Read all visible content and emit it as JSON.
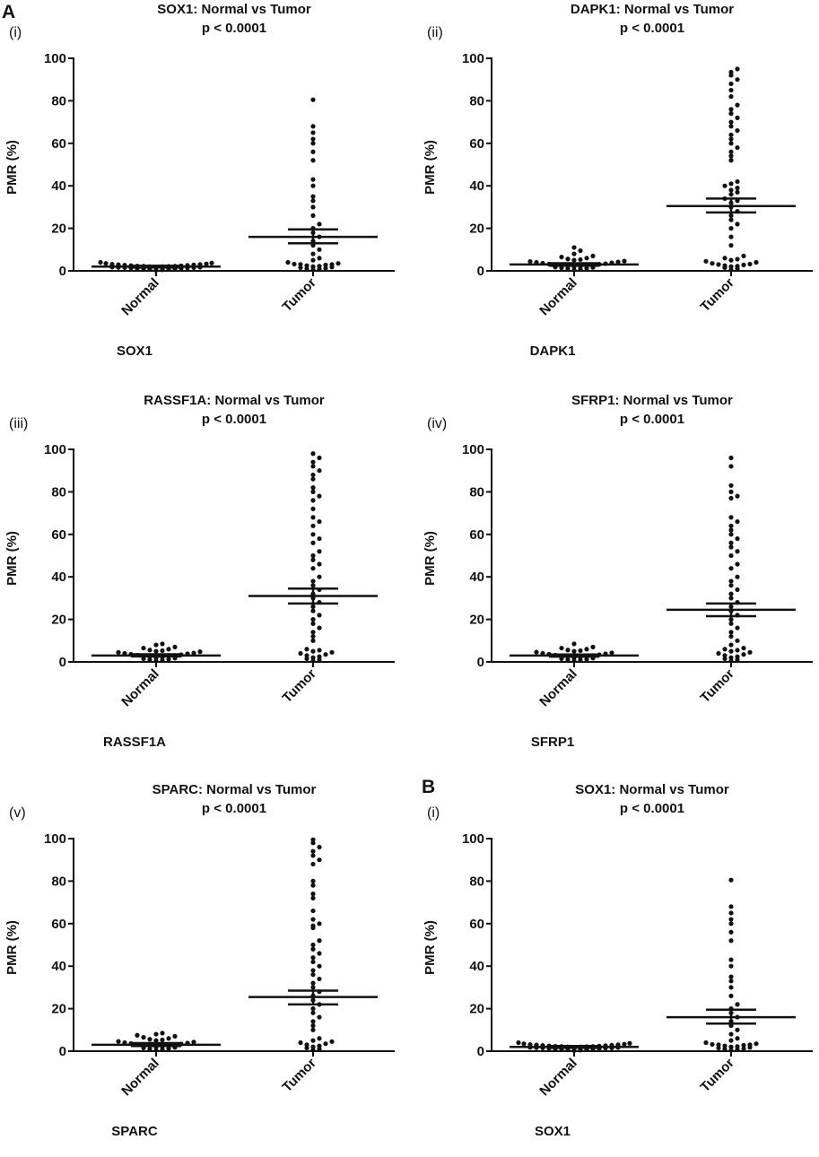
{
  "figure": {
    "section_a": "A",
    "section_b": "B"
  },
  "style": {
    "dot_color": "#111111",
    "axis_color": "#111111"
  },
  "chart_data": [
    {
      "type": "scatter",
      "panel_label": "(i)",
      "title": "SOX1: Normal vs Tumor",
      "subtitle": "p < 0.0001",
      "ylabel": "PMR (%)",
      "xlabel": "SOX1",
      "categories": [
        "Normal",
        "Tumor"
      ],
      "ylim": [
        0,
        100
      ],
      "yticks": [
        0,
        20,
        40,
        60,
        80,
        100
      ],
      "series": [
        {
          "name": "Normal",
          "mean": 2,
          "sem_low": 1.6,
          "sem_high": 2.4,
          "values": [
            0.3,
            0.5,
            0.6,
            0.8,
            1,
            1,
            1.1,
            1.2,
            1.3,
            1.4,
            1.5,
            1.5,
            1.6,
            1.7,
            1.8,
            1.9,
            2,
            2,
            2.1,
            2.2,
            2.2,
            2.3,
            2.4,
            2.5,
            2.6,
            2.7,
            2.8,
            2.9,
            3,
            3.1,
            3.3,
            3.5,
            3.7,
            4
          ]
        },
        {
          "name": "Tumor",
          "mean": 16,
          "sem_low": 13,
          "sem_high": 19.5,
          "values": [
            0.5,
            0.8,
            1,
            1.2,
            1.5,
            1.8,
            2,
            2.2,
            2.5,
            2.8,
            3,
            3,
            3.2,
            3.5,
            4,
            5,
            6,
            8,
            10,
            12,
            14,
            16,
            18,
            20,
            22,
            26,
            30,
            33,
            35,
            40,
            43,
            52,
            56,
            60,
            62,
            65,
            68,
            80.5
          ]
        }
      ]
    },
    {
      "type": "scatter",
      "panel_label": "(ii)",
      "title": "DAPK1: Normal vs Tumor",
      "subtitle": "p < 0.0001",
      "ylabel": "PMR (%)",
      "xlabel": "DAPK1",
      "categories": [
        "Normal",
        "Tumor"
      ],
      "ylim": [
        0,
        100
      ],
      "yticks": [
        0,
        20,
        40,
        60,
        80,
        100
      ],
      "series": [
        {
          "name": "Normal",
          "mean": 3,
          "sem_low": 2.4,
          "sem_high": 3.6,
          "values": [
            0.5,
            0.8,
            1,
            1.2,
            1.4,
            1.6,
            1.8,
            2,
            2.1,
            2.2,
            2.4,
            2.6,
            2.8,
            3,
            3.1,
            3.2,
            3.4,
            3.6,
            3.8,
            4,
            4.2,
            4.4,
            4.6,
            5,
            5.3,
            5.6,
            6,
            6.5,
            7,
            8,
            9.5,
            11
          ]
        },
        {
          "name": "Tumor",
          "mean": 30.5,
          "sem_low": 27.5,
          "sem_high": 34,
          "values": [
            0.5,
            1,
            1.5,
            2,
            2.2,
            2.5,
            2.8,
            3,
            3.2,
            3.5,
            4,
            4.5,
            5,
            5.5,
            6,
            7,
            12,
            16,
            20,
            22,
            24,
            26,
            28,
            30,
            32,
            33,
            34,
            36,
            37,
            38,
            39,
            40,
            41,
            42,
            52,
            54,
            56,
            58,
            60,
            62,
            64,
            66,
            68,
            70,
            72,
            74,
            76,
            78,
            82,
            85,
            88,
            90,
            92,
            93.5,
            95
          ]
        }
      ]
    },
    {
      "type": "scatter",
      "panel_label": "(iii)",
      "title": "RASSF1A: Normal vs Tumor",
      "subtitle": "p < 0.0001",
      "ylabel": "PMR (%)",
      "xlabel": "RASSF1A",
      "categories": [
        "Normal",
        "Tumor"
      ],
      "ylim": [
        0,
        100
      ],
      "yticks": [
        0,
        20,
        40,
        60,
        80,
        100
      ],
      "series": [
        {
          "name": "Normal",
          "mean": 3,
          "sem_low": 2.6,
          "sem_high": 3.6,
          "values": [
            0.5,
            0.8,
            1,
            1.2,
            1.5,
            1.8,
            2,
            2.2,
            2.4,
            2.6,
            2.8,
            3,
            3.2,
            3.4,
            3.6,
            3.8,
            4,
            4.2,
            4.5,
            4.8,
            5,
            5.3,
            5.6,
            6,
            6.5,
            7,
            8,
            8.5
          ]
        },
        {
          "name": "Tumor",
          "mean": 31,
          "sem_low": 27.5,
          "sem_high": 34.5,
          "values": [
            0.5,
            1,
            1.5,
            2,
            2.5,
            3,
            3.5,
            4,
            4.5,
            5,
            5.5,
            6,
            10,
            12,
            14,
            16,
            18,
            20,
            22,
            24,
            26,
            28,
            30,
            32,
            34,
            36,
            38,
            40,
            44,
            46,
            48,
            50,
            52,
            56,
            58,
            60,
            64,
            66,
            68,
            72,
            76,
            78,
            80,
            82,
            86,
            88,
            90,
            92,
            94,
            96,
            98
          ]
        }
      ]
    },
    {
      "type": "scatter",
      "panel_label": "(iv)",
      "title": "SFRP1: Normal vs Tumor",
      "subtitle": "p < 0.0001",
      "ylabel": "PMR (%)",
      "xlabel": "SFRP1",
      "categories": [
        "Normal",
        "Tumor"
      ],
      "ylim": [
        0,
        100
      ],
      "yticks": [
        0,
        20,
        40,
        60,
        80,
        100
      ],
      "series": [
        {
          "name": "Normal",
          "mean": 3,
          "sem_low": 2.5,
          "sem_high": 3.5,
          "values": [
            0.5,
            0.8,
            1,
            1.2,
            1.5,
            1.8,
            2,
            2.2,
            2.4,
            2.6,
            2.8,
            3,
            3.2,
            3.4,
            3.6,
            3.8,
            4,
            4.3,
            4.6,
            5,
            5.3,
            5.6,
            6,
            6.5,
            7,
            8.5
          ]
        },
        {
          "name": "Tumor",
          "mean": 24.5,
          "sem_low": 21.5,
          "sem_high": 27.5,
          "values": [
            0.5,
            1,
            1.5,
            2,
            2.5,
            3,
            3.5,
            4,
            4.5,
            5,
            5.5,
            6,
            6.5,
            8,
            10,
            12,
            14,
            16,
            18,
            20,
            22,
            24,
            26,
            28,
            30,
            32,
            34,
            36,
            38,
            40,
            44,
            46,
            50,
            52,
            54,
            56,
            58,
            60,
            62,
            64,
            66,
            68,
            77,
            78,
            80,
            83,
            92,
            96
          ]
        }
      ]
    },
    {
      "type": "scatter",
      "panel_label": "(v)",
      "title": "SPARC: Normal vs Tumor",
      "subtitle": "p < 0.0001",
      "ylabel": "PMR (%)",
      "xlabel": "SPARC",
      "categories": [
        "Normal",
        "Tumor"
      ],
      "ylim": [
        0,
        100
      ],
      "yticks": [
        0,
        20,
        40,
        60,
        80,
        100
      ],
      "series": [
        {
          "name": "Normal",
          "mean": 3,
          "sem_low": 2.4,
          "sem_high": 3.8,
          "values": [
            0.5,
            0.8,
            1,
            1.2,
            1.5,
            1.8,
            2,
            2.2,
            2.4,
            2.6,
            2.8,
            3,
            3.2,
            3.4,
            3.6,
            3.8,
            4,
            4.3,
            4.6,
            5,
            5.3,
            5.6,
            6,
            6.5,
            7,
            7.5,
            8,
            8.5
          ]
        },
        {
          "name": "Tumor",
          "mean": 25.5,
          "sem_low": 22,
          "sem_high": 28.5,
          "values": [
            0.5,
            1,
            1.5,
            2,
            2.5,
            3,
            3.5,
            4,
            4.5,
            5,
            6,
            10,
            12,
            14,
            16,
            18,
            20,
            22,
            24,
            26,
            28,
            30,
            32,
            34,
            36,
            38,
            40,
            42,
            44,
            46,
            48,
            50,
            52,
            58,
            59,
            60,
            62,
            66,
            72,
            74,
            78,
            80,
            88,
            90,
            92,
            94,
            96,
            98,
            99.5
          ]
        }
      ]
    },
    {
      "type": "scatter",
      "panel_label": "(i)",
      "title": "SOX1: Normal vs Tumor",
      "subtitle": "p < 0.0001",
      "ylabel": "PMR (%)",
      "xlabel": "SOX1",
      "categories": [
        "Normal",
        "Tumor"
      ],
      "ylim": [
        0,
        100
      ],
      "yticks": [
        0,
        20,
        40,
        60,
        80,
        100
      ],
      "series": [
        {
          "name": "Normal",
          "mean": 2,
          "sem_low": 1.6,
          "sem_high": 2.4,
          "values": [
            0.3,
            0.5,
            0.6,
            0.8,
            1,
            1,
            1.1,
            1.2,
            1.3,
            1.4,
            1.5,
            1.5,
            1.6,
            1.7,
            1.8,
            1.9,
            2,
            2,
            2.1,
            2.2,
            2.2,
            2.3,
            2.4,
            2.5,
            2.6,
            2.7,
            2.8,
            2.9,
            3,
            3.1,
            3.3,
            3.5,
            3.7,
            4
          ]
        },
        {
          "name": "Tumor",
          "mean": 16,
          "sem_low": 13,
          "sem_high": 19.5,
          "values": [
            0.5,
            0.8,
            1,
            1.2,
            1.5,
            1.8,
            2,
            2.2,
            2.5,
            2.8,
            3,
            3,
            3.2,
            3.5,
            4,
            5,
            6,
            8,
            10,
            12,
            14,
            16,
            18,
            20,
            22,
            26,
            30,
            33,
            35,
            40,
            43,
            52,
            56,
            60,
            62,
            65,
            68,
            80.5
          ]
        }
      ]
    }
  ]
}
